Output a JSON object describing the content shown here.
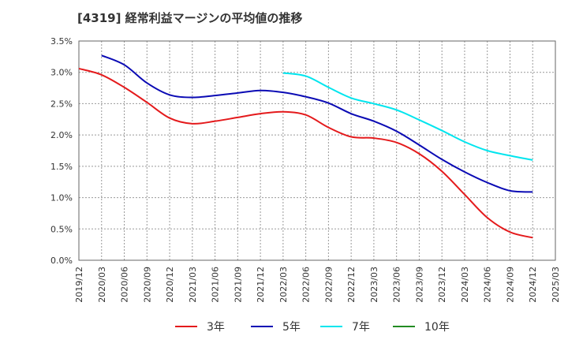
{
  "title": "[4319]  経常利益マージンの平均値の推移",
  "chart_data": {
    "type": "line",
    "title": "[4319]  経常利益マージンの平均値の推移",
    "xlabel": "",
    "ylabel": "",
    "ylim": [
      0,
      3.5
    ],
    "y_ticks": [
      "0.0%",
      "0.5%",
      "1.0%",
      "1.5%",
      "2.0%",
      "2.5%",
      "3.0%",
      "3.5%"
    ],
    "x_ticks": [
      "2019/12",
      "2020/03",
      "2020/06",
      "2020/09",
      "2020/12",
      "2021/03",
      "2021/06",
      "2021/09",
      "2021/12",
      "2022/03",
      "2022/06",
      "2022/09",
      "2022/12",
      "2023/03",
      "2023/06",
      "2023/09",
      "2023/12",
      "2024/03",
      "2024/06",
      "2024/09",
      "2024/12",
      "2025/03"
    ],
    "grid": true,
    "legend_position": "bottom",
    "series": [
      {
        "name": "3年",
        "color": "#e41a1c",
        "x": [
          "2019/12",
          "2020/03",
          "2020/06",
          "2020/09",
          "2020/12",
          "2021/03",
          "2021/06",
          "2021/09",
          "2021/12",
          "2022/03",
          "2022/06",
          "2022/09",
          "2022/12",
          "2023/03",
          "2023/06",
          "2023/09",
          "2023/12",
          "2024/03",
          "2024/06",
          "2024/09",
          "2024/12"
        ],
        "values": [
          3.06,
          2.96,
          2.76,
          2.52,
          2.27,
          2.18,
          2.22,
          2.28,
          2.34,
          2.37,
          2.32,
          2.12,
          1.97,
          1.95,
          1.88,
          1.7,
          1.42,
          1.05,
          0.68,
          0.45,
          0.36
        ]
      },
      {
        "name": "5年",
        "color": "#0a0ab4",
        "x": [
          "2020/03",
          "2020/06",
          "2020/09",
          "2020/12",
          "2021/03",
          "2021/06",
          "2021/09",
          "2021/12",
          "2022/03",
          "2022/06",
          "2022/09",
          "2022/12",
          "2023/03",
          "2023/06",
          "2023/09",
          "2023/12",
          "2024/03",
          "2024/06",
          "2024/09",
          "2024/12"
        ],
        "values": [
          3.27,
          3.12,
          2.83,
          2.64,
          2.6,
          2.63,
          2.67,
          2.71,
          2.68,
          2.61,
          2.51,
          2.34,
          2.22,
          2.06,
          1.84,
          1.61,
          1.41,
          1.24,
          1.11,
          1.09
        ]
      },
      {
        "name": "7年",
        "color": "#00e5ee",
        "x": [
          "2022/03",
          "2022/06",
          "2022/09",
          "2022/12",
          "2023/03",
          "2023/06",
          "2023/09",
          "2023/12",
          "2024/03",
          "2024/06",
          "2024/09",
          "2024/12"
        ],
        "values": [
          2.99,
          2.94,
          2.76,
          2.59,
          2.5,
          2.4,
          2.24,
          2.07,
          1.89,
          1.75,
          1.67,
          1.6
        ]
      },
      {
        "name": "10年",
        "color": "#228b22",
        "x": [],
        "values": []
      }
    ]
  }
}
